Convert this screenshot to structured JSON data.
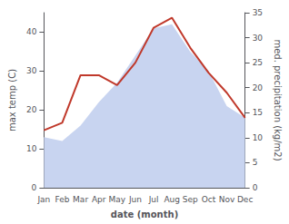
{
  "chart_data": {
    "type": "line",
    "categories": [
      "Jan",
      "Feb",
      "Mar",
      "Apr",
      "May",
      "Jun",
      "Jul",
      "Aug",
      "Sep",
      "Oct",
      "Nov",
      "Dec"
    ],
    "xlabel": "date (month)",
    "ylabel": "max temp (C)",
    "y2label": "med. precipitation (kg/m2)",
    "series": [
      {
        "type": "area",
        "color": "#c8d4f0",
        "values": [
          13,
          12,
          16,
          22,
          27,
          34,
          41,
          42,
          35,
          30,
          21,
          18
        ]
      },
      {
        "type": "line",
        "color": "#c0392b",
        "axis": "y2",
        "values": [
          11.5,
          13,
          22.5,
          22.5,
          20.5,
          25,
          32,
          34,
          28,
          23,
          19,
          14
        ]
      }
    ],
    "ylim": [
      0,
      45
    ],
    "yticks": [
      0,
      10,
      20,
      30,
      40
    ],
    "y2lim": [
      0,
      35
    ],
    "y2ticks": [
      0,
      5,
      10,
      15,
      20,
      25,
      30,
      35
    ],
    "grid": false
  }
}
